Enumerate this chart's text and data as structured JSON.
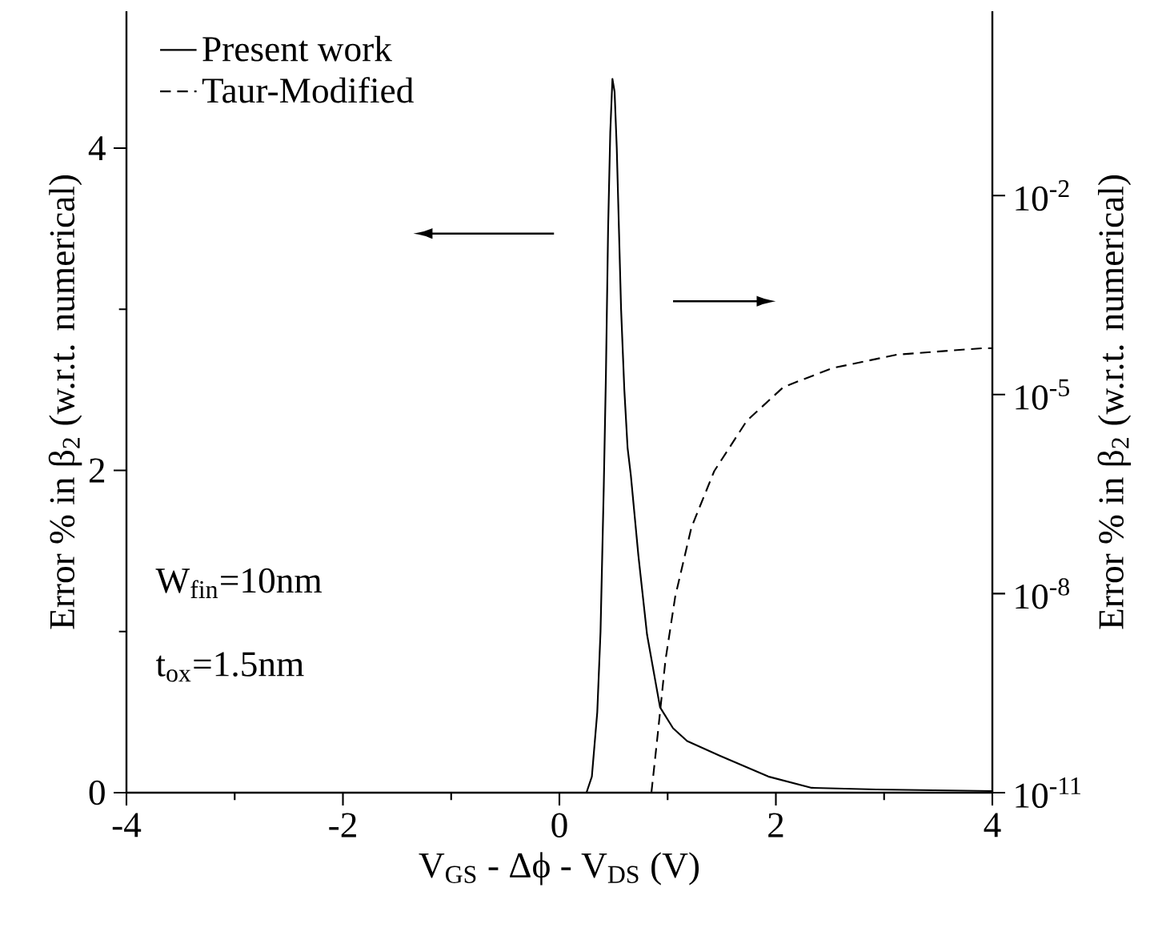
{
  "chart_data": {
    "type": "line",
    "xlabel": "V$_{GS}$ - Δϕ - V$_{DS}$ (V)",
    "ylabel": "Error % in β$_{2}$ (w.r.t. numerical)",
    "y2label": "Error % in β$_{2}$ (w.r.t. numerical)",
    "xlim": [
      -4,
      4
    ],
    "xticks": [
      -4,
      -2,
      0,
      2,
      4
    ],
    "ylim": [
      0,
      4.85
    ],
    "yticks": [
      0,
      2,
      4
    ],
    "y2lim": [
      1e-11,
      6
    ],
    "y2ticks": [
      {
        "value": 1e-11,
        "label": "10$^{-11}$"
      },
      {
        "value": 1e-08,
        "label": "10$^{-8}$"
      },
      {
        "value": 1e-05,
        "label": "10$^{-5}$"
      },
      {
        "value": 0.01,
        "label": "10$^{-2}$"
      }
    ],
    "log": "y2",
    "legend": "top left",
    "marker": "none",
    "annotations": [
      "W$_{fin}$=10nm",
      "t$_{ox}$=1.5nm"
    ],
    "series": [
      {
        "name": "Present work",
        "color": "#000000",
        "line_style": "solid",
        "x": [
          -4,
          0.25,
          0.3,
          0.35,
          0.38,
          0.41,
          0.43,
          0.45,
          0.47,
          0.49,
          0.51,
          0.53,
          0.55,
          0.57,
          0.6,
          0.63,
          0.66,
          0.73,
          0.81,
          0.93,
          1.05,
          1.18,
          1.48,
          1.93,
          2.33,
          2.93,
          4
        ],
        "values": [
          0,
          0,
          0.1,
          0.5,
          1.0,
          1.9,
          2.6,
          3.5,
          4.1,
          4.43,
          4.35,
          4.0,
          3.5,
          3.0,
          2.5,
          2.14,
          1.97,
          1.47,
          0.98,
          0.53,
          0.4,
          0.32,
          0.23,
          0.1,
          0.03,
          0.02,
          0.01
        ]
      },
      {
        "name": "Taur-Modified",
        "color": "#000000",
        "line_style": "dashed",
        "axis": "y2",
        "x": [
          0.85,
          0.91,
          0.98,
          1.07,
          1.22,
          1.43,
          1.73,
          2.07,
          2.52,
          3.12,
          3.91,
          4
        ],
        "values": [
          1e-11,
          8e-11,
          1e-09,
          9e-09,
          1e-07,
          7e-07,
          4e-06,
          1.3e-05,
          2.5e-05,
          4e-05,
          5e-05,
          5e-05
        ]
      }
    ]
  }
}
